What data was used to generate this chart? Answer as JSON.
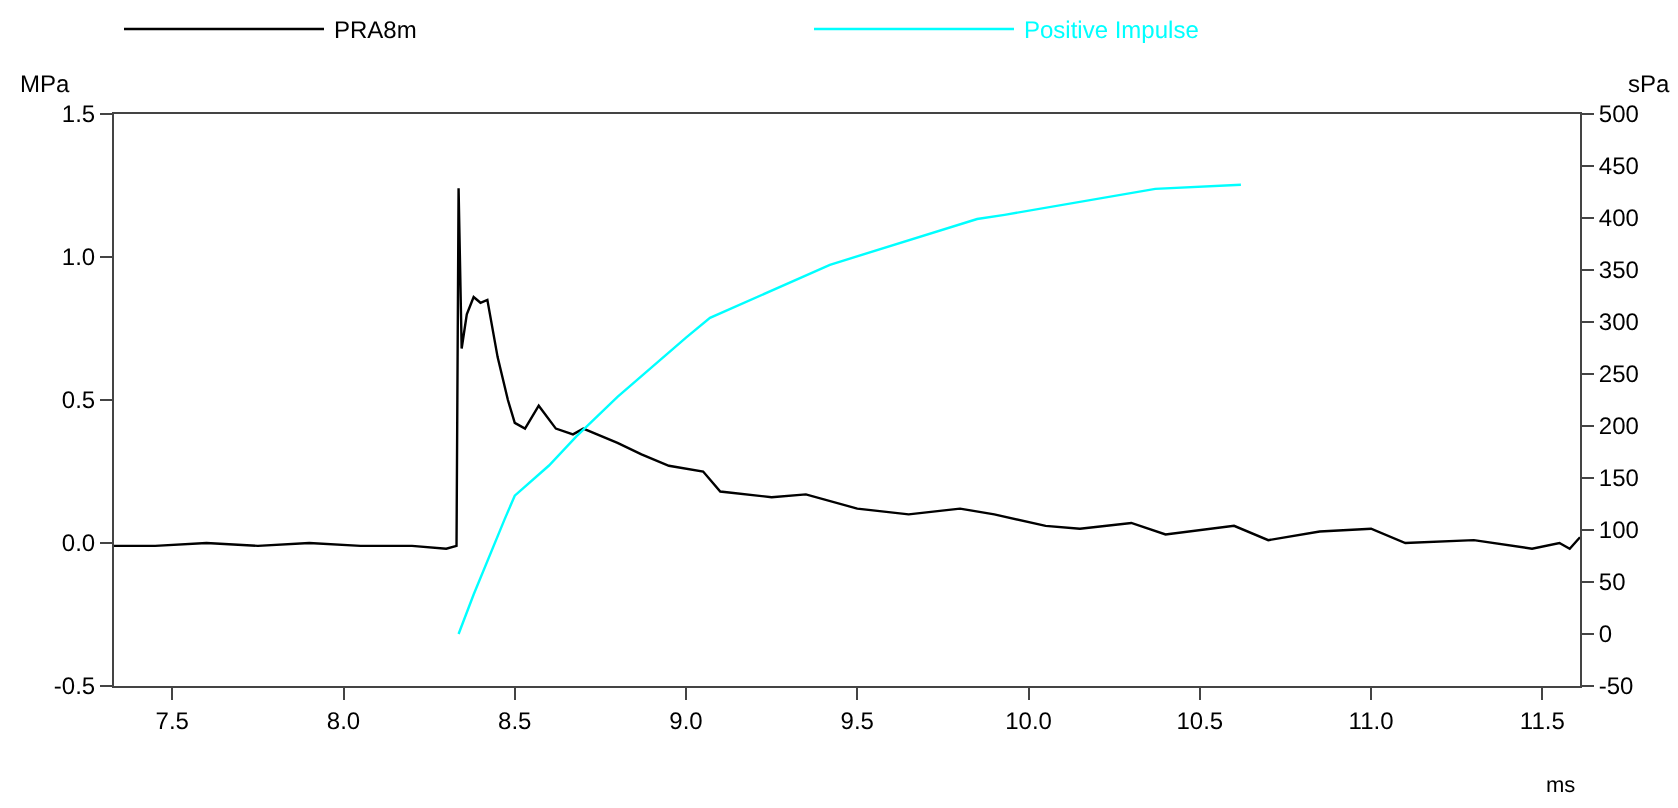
{
  "chart_data": {
    "type": "line",
    "xlabel": "ms",
    "ylabel": "MPa",
    "y2label": "sPa",
    "xlim": [
      7.33,
      11.61
    ],
    "xticks": [
      {
        "value": 7.5,
        "label": "7.5"
      },
      {
        "value": 8,
        "label": "8.0"
      },
      {
        "value": 8.5,
        "label": "8.5"
      },
      {
        "value": 9,
        "label": "9.0"
      },
      {
        "value": 9.5,
        "label": "9.5"
      },
      {
        "value": 10,
        "label": "10.0"
      },
      {
        "value": 10.5,
        "label": "10.5"
      },
      {
        "value": 11,
        "label": "11.0"
      },
      {
        "value": 11.5,
        "label": "11.5"
      }
    ],
    "ylim": [
      -0.5,
      1.5
    ],
    "yticks": [
      {
        "value": -0.5,
        "label": "-0.5"
      },
      {
        "value": 0,
        "label": "0.0"
      },
      {
        "value": 0.5,
        "label": "0.5"
      },
      {
        "value": 1,
        "label": "1.0"
      },
      {
        "value": 1.5,
        "label": "1.5"
      }
    ],
    "y2lim": [
      -50,
      500
    ],
    "y2ticks": [
      -50,
      0,
      50,
      100,
      150,
      200,
      250,
      300,
      350,
      400,
      450,
      500
    ],
    "legend": "top left",
    "marker": "none",
    "line_style": "solid",
    "series": [
      {
        "name": "PRA8m",
        "color": "#000000",
        "x": [
          7.33,
          7.45,
          7.6,
          7.75,
          7.9,
          8.05,
          8.2,
          8.3,
          8.33,
          8.336,
          8.345,
          8.36,
          8.38,
          8.4,
          8.42,
          8.45,
          8.48,
          8.5,
          8.53,
          8.57,
          8.62,
          8.67,
          8.7,
          8.8,
          8.87,
          8.95,
          9.05,
          9.1,
          9.25,
          9.35,
          9.5,
          9.65,
          9.8,
          9.9,
          10.05,
          10.15,
          10.3,
          10.4,
          10.6,
          10.7,
          10.85,
          11.0,
          11.1,
          11.3,
          11.47,
          11.55,
          11.58,
          11.61
        ],
        "values": [
          -0.01,
          -0.01,
          0.0,
          -0.01,
          0.0,
          -0.01,
          -0.01,
          -0.02,
          -0.01,
          1.24,
          0.68,
          0.8,
          0.86,
          0.84,
          0.85,
          0.65,
          0.5,
          0.42,
          0.4,
          0.48,
          0.4,
          0.38,
          0.4,
          0.35,
          0.31,
          0.27,
          0.25,
          0.18,
          0.16,
          0.17,
          0.12,
          0.1,
          0.12,
          0.1,
          0.06,
          0.05,
          0.07,
          0.03,
          0.06,
          0.01,
          0.04,
          0.05,
          0.0,
          0.01,
          -0.02,
          0.0,
          -0.02,
          0.02
        ]
      },
      {
        "name": "Positive Impulse",
        "color": "#00ffff",
        "axis": "y2",
        "x": [
          8.336,
          8.38,
          8.47,
          8.5,
          8.6,
          8.68,
          8.8,
          9.0,
          9.07,
          9.42,
          9.85,
          9.93,
          10.37,
          10.62
        ],
        "values": [
          0,
          38,
          110,
          133,
          162,
          190,
          228,
          285,
          304,
          355,
          399,
          403,
          428,
          432
        ]
      }
    ]
  }
}
